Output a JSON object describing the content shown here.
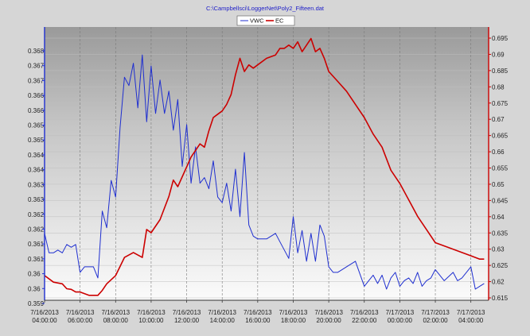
{
  "chart_data": {
    "type": "line",
    "title": "C:\\Campbellsci\\LoggerNet\\Poly2_Fifteen.dat",
    "colors": {
      "vwc": "#1f2fd0",
      "ec": "#cc0000",
      "left_axis": "#1f2fd0",
      "right_axis": "#cc0000"
    },
    "legend": {
      "placement": "top-center",
      "entries": [
        "VWC",
        "EC"
      ]
    },
    "grid": true,
    "x_axis": {
      "range": [
        "7/16/2013 04:00:00",
        "7/17/2013 05:00:00"
      ],
      "tick_labels": [
        [
          "7/16/2013",
          "04:00:00"
        ],
        [
          "7/16/2013",
          "06:00:00"
        ],
        [
          "7/16/2013",
          "08:00:00"
        ],
        [
          "7/16/2013",
          "10:00:00"
        ],
        [
          "7/16/2013",
          "12:00:00"
        ],
        [
          "7/16/2013",
          "14:00:00"
        ],
        [
          "7/16/2013",
          "16:00:00"
        ],
        [
          "7/16/2013",
          "18:00:00"
        ],
        [
          "7/16/2013",
          "20:00:00"
        ],
        [
          "7/16/2013",
          "22:00:00"
        ],
        [
          "7/17/2013",
          "00:00:00"
        ],
        [
          "7/17/2013",
          "02:00:00"
        ],
        [
          "7/17/2013",
          "04:00:00"
        ]
      ]
    },
    "y_left": {
      "range": [
        0.3588,
        0.3686
      ],
      "ticks": [
        "0.368",
        "0.367",
        "0.367",
        "0.366",
        "0.366",
        "0.365",
        "0.365",
        "0.364",
        "0.364",
        "0.363",
        "0.363",
        "0.362",
        "0.362",
        "0.361",
        "0.361",
        "0.36",
        "0.36",
        "0.359"
      ]
    },
    "y_right": {
      "range": [
        0.6125,
        0.6955
      ],
      "ticks": [
        "0.695",
        "0.69",
        "0.685",
        "0.68",
        "0.675",
        "0.67",
        "0.665",
        "0.66",
        "0.655",
        "0.65",
        "0.645",
        "0.64",
        "0.635",
        "0.63",
        "0.625",
        "0.62",
        "0.615"
      ]
    },
    "series": [
      {
        "name": "VWC",
        "axis": "left",
        "x": [
          "7/16/2013 04:00",
          "7/16/2013 04:15",
          "7/16/2013 04:30",
          "7/16/2013 04:45",
          "7/16/2013 05:00",
          "7/16/2013 05:15",
          "7/16/2013 05:30",
          "7/16/2013 05:45",
          "7/16/2013 06:00",
          "7/16/2013 06:15",
          "7/16/2013 06:30",
          "7/16/2013 06:45",
          "7/16/2013 07:00",
          "7/16/2013 07:15",
          "7/16/2013 07:30",
          "7/16/2013 07:45",
          "7/16/2013 08:00",
          "7/16/2013 08:15",
          "7/16/2013 08:30",
          "7/16/2013 08:45",
          "7/16/2013 09:00",
          "7/16/2013 09:15",
          "7/16/2013 09:30",
          "7/16/2013 09:45",
          "7/16/2013 10:00",
          "7/16/2013 10:15",
          "7/16/2013 10:30",
          "7/16/2013 10:45",
          "7/16/2013 11:00",
          "7/16/2013 11:15",
          "7/16/2013 11:30",
          "7/16/2013 11:45",
          "7/16/2013 12:00",
          "7/16/2013 12:15",
          "7/16/2013 12:30",
          "7/16/2013 12:45",
          "7/16/2013 13:00",
          "7/16/2013 13:15",
          "7/16/2013 13:30",
          "7/16/2013 13:45",
          "7/16/2013 14:00",
          "7/16/2013 14:15",
          "7/16/2013 14:30",
          "7/16/2013 14:45",
          "7/16/2013 15:00",
          "7/16/2013 15:15",
          "7/16/2013 15:30",
          "7/16/2013 15:45",
          "7/16/2013 16:00",
          "7/16/2013 16:30",
          "7/16/2013 17:00",
          "7/16/2013 17:15",
          "7/16/2013 17:30",
          "7/16/2013 17:45",
          "7/16/2013 18:00",
          "7/16/2013 18:15",
          "7/16/2013 18:30",
          "7/16/2013 18:45",
          "7/16/2013 19:00",
          "7/16/2013 19:15",
          "7/16/2013 19:30",
          "7/16/2013 19:45",
          "7/16/2013 20:00",
          "7/16/2013 20:15",
          "7/16/2013 20:30",
          "7/16/2013 20:45",
          "7/16/2013 21:00",
          "7/16/2013 21:30",
          "7/16/2013 22:00",
          "7/16/2013 22:15",
          "7/16/2013 22:30",
          "7/16/2013 22:45",
          "7/16/2013 23:00",
          "7/16/2013 23:15",
          "7/16/2013 23:30",
          "7/16/2013 23:45",
          "7/17/2013 00:00",
          "7/17/2013 00:15",
          "7/17/2013 00:30",
          "7/17/2013 00:45",
          "7/17/2013 01:00",
          "7/17/2013 01:15",
          "7/17/2013 01:30",
          "7/17/2013 01:45",
          "7/17/2013 02:00",
          "7/17/2013 02:30",
          "7/17/2013 03:00",
          "7/17/2013 03:15",
          "7/17/2013 03:30",
          "7/17/2013 04:00",
          "7/17/2013 04:15",
          "7/17/2013 04:30",
          "7/17/2013 04:45"
        ],
        "values": [
          0.3612,
          0.3605,
          0.3605,
          0.3606,
          0.3605,
          0.3608,
          0.3607,
          0.3608,
          0.3598,
          0.36,
          0.36,
          0.36,
          0.3596,
          0.362,
          0.3614,
          0.3631,
          0.3625,
          0.365,
          0.3668,
          0.3665,
          0.3673,
          0.3657,
          0.3676,
          0.3652,
          0.3672,
          0.3655,
          0.3667,
          0.3655,
          0.3663,
          0.3649,
          0.366,
          0.3636,
          0.3651,
          0.363,
          0.3643,
          0.363,
          0.3632,
          0.3628,
          0.3638,
          0.3625,
          0.3623,
          0.363,
          0.362,
          0.3635,
          0.3618,
          0.3641,
          0.3615,
          0.3611,
          0.361,
          0.361,
          0.3612,
          0.3609,
          0.3606,
          0.3603,
          0.3618,
          0.3605,
          0.3613,
          0.3602,
          0.3612,
          0.3602,
          0.3615,
          0.3611,
          0.36,
          0.3598,
          0.3598,
          0.3599,
          0.36,
          0.3602,
          0.3593,
          0.3595,
          0.3597,
          0.3594,
          0.3597,
          0.3592,
          0.3596,
          0.3598,
          0.3593,
          0.3595,
          0.3596,
          0.3594,
          0.3598,
          0.3593,
          0.3595,
          0.3596,
          0.3599,
          0.3595,
          0.3598,
          0.3595,
          0.3596,
          0.36,
          0.3592,
          0.3593,
          0.3594
        ]
      },
      {
        "name": "EC",
        "axis": "right",
        "x": [
          "7/16/2013 04:00",
          "7/16/2013 04:30",
          "7/16/2013 05:00",
          "7/16/2013 05:15",
          "7/16/2013 05:30",
          "7/16/2013 05:45",
          "7/16/2013 06:00",
          "7/16/2013 06:30",
          "7/16/2013 07:00",
          "7/16/2013 07:15",
          "7/16/2013 07:30",
          "7/16/2013 08:00",
          "7/16/2013 08:30",
          "7/16/2013 09:00",
          "7/16/2013 09:30",
          "7/16/2013 09:45",
          "7/16/2013 10:00",
          "7/16/2013 10:30",
          "7/16/2013 11:00",
          "7/16/2013 11:15",
          "7/16/2013 11:30",
          "7/16/2013 12:00",
          "7/16/2013 12:15",
          "7/16/2013 12:30",
          "7/16/2013 12:45",
          "7/16/2013 13:00",
          "7/16/2013 13:15",
          "7/16/2013 13:30",
          "7/16/2013 13:45",
          "7/16/2013 14:00",
          "7/16/2013 14:15",
          "7/16/2013 14:30",
          "7/16/2013 14:45",
          "7/16/2013 15:00",
          "7/16/2013 15:15",
          "7/16/2013 15:30",
          "7/16/2013 15:45",
          "7/16/2013 16:00",
          "7/16/2013 16:30",
          "7/16/2013 17:00",
          "7/16/2013 17:15",
          "7/16/2013 17:30",
          "7/16/2013 17:45",
          "7/16/2013 18:00",
          "7/16/2013 18:15",
          "7/16/2013 18:30",
          "7/16/2013 18:45",
          "7/16/2013 19:00",
          "7/16/2013 19:15",
          "7/16/2013 19:30",
          "7/16/2013 19:45",
          "7/16/2013 20:00",
          "7/16/2013 20:30",
          "7/16/2013 21:00",
          "7/16/2013 21:30",
          "7/16/2013 22:00",
          "7/16/2013 22:30",
          "7/16/2013 23:00",
          "7/16/2013 23:30",
          "7/17/2013 00:00",
          "7/17/2013 00:30",
          "7/17/2013 01:00",
          "7/17/2013 01:30",
          "7/17/2013 02:00",
          "7/17/2013 02:30",
          "7/17/2013 03:00",
          "7/17/2013 03:30",
          "7/17/2013 04:00",
          "7/17/2013 04:30",
          "7/17/2013 04:45"
        ],
        "values": [
          0.62,
          0.618,
          0.6175,
          0.616,
          0.6158,
          0.615,
          0.615,
          0.614,
          0.614,
          0.6155,
          0.6175,
          0.62,
          0.6255,
          0.627,
          0.6255,
          0.634,
          0.633,
          0.637,
          0.644,
          0.649,
          0.647,
          0.653,
          0.656,
          0.658,
          0.66,
          0.659,
          0.664,
          0.668,
          0.669,
          0.67,
          0.672,
          0.675,
          0.681,
          0.686,
          0.682,
          0.684,
          0.683,
          0.684,
          0.686,
          0.687,
          0.689,
          0.689,
          0.69,
          0.689,
          0.691,
          0.688,
          0.69,
          0.692,
          0.688,
          0.689,
          0.686,
          0.682,
          0.679,
          0.676,
          0.672,
          0.668,
          0.663,
          0.659,
          0.652,
          0.648,
          0.643,
          0.638,
          0.634,
          0.63,
          0.629,
          0.628,
          0.627,
          0.626,
          0.625,
          0.625
        ]
      }
    ]
  }
}
